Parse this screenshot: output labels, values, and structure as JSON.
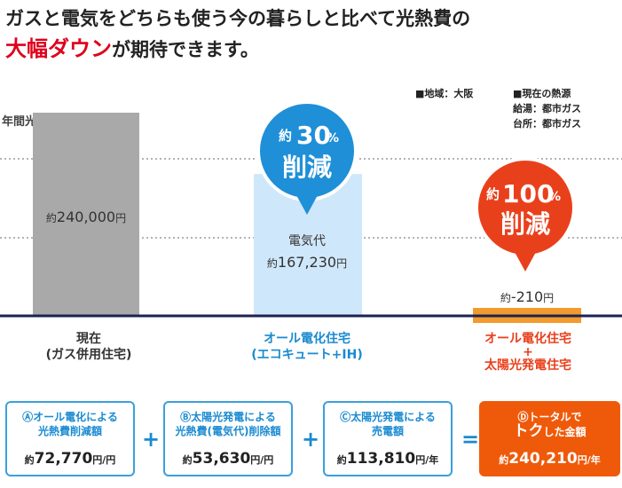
{
  "headline": {
    "line1": "ガスと電気をどちらも使う今の暮らしと比べて光熱費の",
    "line2_highlight": "大幅ダウン",
    "line2_rest": "が期待できます。"
  },
  "meta": {
    "region": "■地域：大阪",
    "heat_title": "■現在の熱源",
    "heat_water": "給湯：都市ガス",
    "heat_kitchen": "台所：都市ガス"
  },
  "chart_data": {
    "type": "bar",
    "ylabel": "年間光熱費(円/年)",
    "categories": [
      "現在\n(ガス併用住宅)",
      "オール電化住宅\n(エコキュート+IH)",
      "オール電化住宅\n+\n太陽光発電住宅"
    ],
    "values": [
      240000,
      167230,
      -210
    ],
    "bar_labels": [
      {
        "prefix": "約",
        "value": "240,000",
        "unit": "円"
      },
      {
        "caption": "電気代",
        "prefix": "約",
        "value": "167,230",
        "unit": "円"
      },
      {
        "prefix": "約",
        "value": "-210",
        "unit": "円"
      }
    ],
    "reduction_badges": [
      {
        "prefix": "約",
        "value": "30",
        "unit": "%",
        "label": "削減"
      },
      {
        "prefix": "約",
        "value": "100",
        "unit": "%",
        "label": "削減"
      }
    ],
    "colors": {
      "bar1": "#a9a9a9",
      "bar2": "#cfe7fa",
      "bar3": "#f39a2e",
      "badge_blue": "#1f8fd8",
      "badge_red": "#e9401c",
      "axis": "#1c2353"
    },
    "grid": true
  },
  "categories_text": {
    "c1_l1": "現在",
    "c1_l2": "(ガス併用住宅)",
    "c2_l1": "オール電化住宅",
    "c2_l2": "(エコキュート+IH)",
    "c3_l1": "オール電化住宅",
    "c3_l2": "+",
    "c3_l3": "太陽光発電住宅"
  },
  "summary": {
    "a": {
      "title1": "Ⓐオール電化による",
      "title2": "光熱費削減額",
      "prefix": "約",
      "value": "72,770",
      "unit": "円/円"
    },
    "b": {
      "title1": "Ⓑ太陽光発電による",
      "title2": "光熱費(電気代)削除額",
      "prefix": "約",
      "value": "53,630",
      "unit": "円/円"
    },
    "c": {
      "title1": "Ⓒ太陽光発電による",
      "title2": "売電額",
      "prefix": "約",
      "value": "113,810",
      "unit": "円/年"
    },
    "d": {
      "title1": "Ⓓトータルで",
      "title2_big": "トク",
      "title2_rest": "した金額",
      "prefix": "約",
      "value": "240,210",
      "unit": "円/年"
    },
    "op_plus": "+",
    "op_eq": "="
  }
}
